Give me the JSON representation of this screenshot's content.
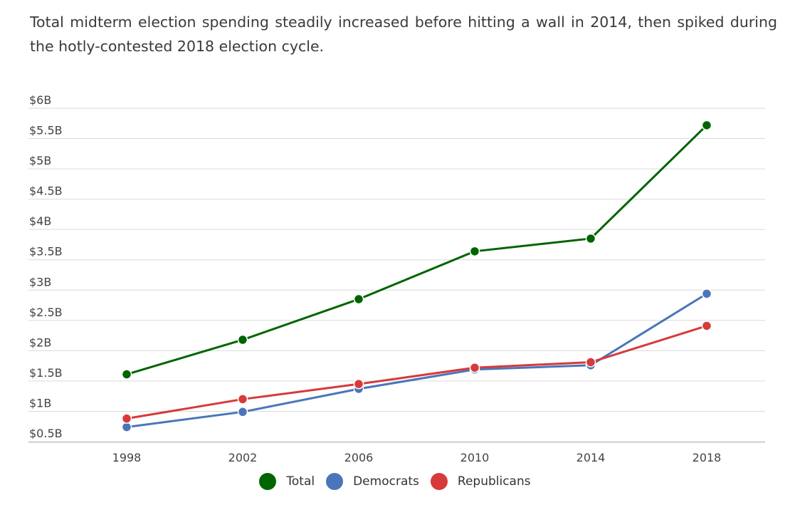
{
  "subtitle": "Total midterm election spending steadily increased before hitting a wall in 2014, then spiked during the hotly-contested 2018 election cycle.",
  "chart_data": {
    "type": "line",
    "title": "",
    "xlabel": "",
    "ylabel": "",
    "categories": [
      "1998",
      "2002",
      "2006",
      "2010",
      "2014",
      "2018"
    ],
    "ylim": [
      0.5,
      6
    ],
    "y_ticks": [
      "$0.5B",
      "$1B",
      "$1.5B",
      "$2B",
      "$2.5B",
      "$3B",
      "$3.5B",
      "$4B",
      "$4.5B",
      "$5B",
      "$5.5B",
      "$6B"
    ],
    "grid": true,
    "legend_position": "bottom",
    "series": [
      {
        "name": "Total",
        "color": "#006400",
        "values": [
          1.61,
          2.18,
          2.85,
          3.64,
          3.85,
          5.72
        ]
      },
      {
        "name": "Democrats",
        "color": "#4a76b9",
        "values": [
          0.74,
          0.99,
          1.37,
          1.69,
          1.76,
          2.94
        ]
      },
      {
        "name": "Republicans",
        "color": "#d63a3a",
        "values": [
          0.88,
          1.2,
          1.45,
          1.72,
          1.81,
          2.41
        ]
      }
    ]
  }
}
